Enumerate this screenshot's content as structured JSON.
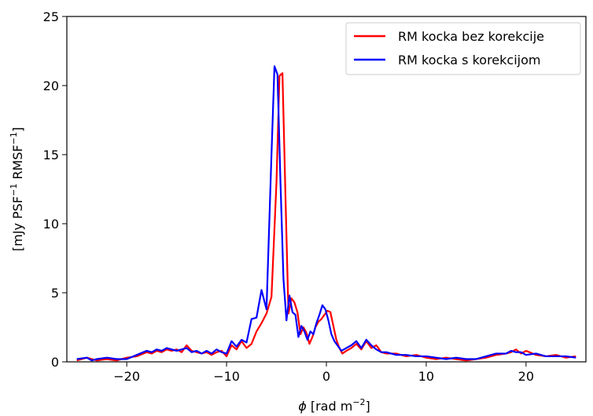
{
  "chart_data": {
    "type": "line",
    "title": "",
    "xlabel_symbol": "ϕ",
    "xlabel_text": " [rad m",
    "xlabel_sup": "−2",
    "xlabel_end": "]",
    "ylabel_parts": {
      "a": "[mJy PSF",
      "a_sup": "−1",
      "b": " RMSF",
      "b_sup": "−1",
      "c": "]"
    },
    "xlim": [
      -26,
      26
    ],
    "ylim": [
      0,
      25
    ],
    "xticks": [
      -20,
      -10,
      0,
      10,
      20
    ],
    "xtick_labels": [
      "−20",
      "−10",
      "0",
      "10",
      "20"
    ],
    "yticks": [
      0,
      5,
      10,
      15,
      20,
      25
    ],
    "ytick_labels": [
      "0",
      "5",
      "10",
      "15",
      "20",
      "25"
    ],
    "grid": false,
    "legend_position": "top-right",
    "series": [
      {
        "name": "RM kocka bez korekcije",
        "color": "#ff0000",
        "x": [
          -25.0,
          -24.0,
          -23.5,
          -23.0,
          -22.0,
          -21.0,
          -20.0,
          -19.0,
          -18.0,
          -17.5,
          -17.0,
          -16.5,
          -16.0,
          -15.5,
          -15.0,
          -14.5,
          -14.0,
          -13.5,
          -13.0,
          -12.5,
          -12.0,
          -11.5,
          -11.0,
          -10.5,
          -10.0,
          -9.5,
          -9.0,
          -8.5,
          -8.0,
          -7.5,
          -7.0,
          -6.5,
          -6.0,
          -5.5,
          -5.0,
          -4.7,
          -4.4,
          -4.1,
          -3.8,
          -3.5,
          -3.2,
          -2.9,
          -2.6,
          -2.3,
          -2.0,
          -1.7,
          -1.4,
          -1.1,
          -0.8,
          -0.5,
          -0.2,
          0.1,
          0.4,
          0.7,
          1.0,
          1.3,
          1.6,
          2.0,
          2.5,
          3.0,
          3.5,
          4.0,
          4.5,
          5.0,
          5.5,
          6.0,
          7.0,
          8.0,
          9.0,
          10.0,
          11.0,
          12.0,
          13.0,
          14.0,
          15.0,
          16.0,
          17.0,
          18.0,
          18.5,
          19.0,
          19.5,
          20.0,
          21.0,
          22.0,
          23.0,
          24.0,
          25.0
        ],
        "y": [
          0.1,
          0.3,
          0.2,
          0.1,
          0.2,
          0.1,
          0.3,
          0.4,
          0.7,
          0.6,
          0.8,
          0.7,
          0.9,
          0.8,
          0.9,
          0.7,
          1.2,
          0.8,
          0.7,
          0.6,
          0.7,
          0.5,
          0.7,
          0.8,
          0.4,
          1.2,
          0.9,
          1.5,
          1.0,
          1.3,
          2.2,
          2.8,
          3.5,
          4.7,
          13.0,
          20.7,
          20.9,
          12.0,
          3.5,
          4.6,
          4.3,
          3.6,
          2.0,
          2.5,
          2.1,
          1.3,
          1.8,
          2.5,
          2.9,
          3.1,
          3.4,
          3.7,
          3.6,
          2.6,
          1.6,
          1.0,
          0.6,
          0.8,
          1.0,
          1.3,
          0.9,
          1.5,
          1.0,
          1.2,
          0.7,
          0.6,
          0.6,
          0.4,
          0.5,
          0.3,
          0.2,
          0.3,
          0.2,
          0.1,
          0.2,
          0.3,
          0.5,
          0.6,
          0.7,
          0.9,
          0.6,
          0.8,
          0.5,
          0.4,
          0.5,
          0.3,
          0.4
        ]
      },
      {
        "name": "RM kocka s korekcijom",
        "color": "#0000ff",
        "x": [
          -25.0,
          -24.0,
          -23.5,
          -23.0,
          -22.0,
          -21.0,
          -20.0,
          -19.0,
          -18.0,
          -17.5,
          -17.0,
          -16.5,
          -16.0,
          -15.5,
          -15.0,
          -14.5,
          -14.0,
          -13.5,
          -13.0,
          -12.5,
          -12.0,
          -11.5,
          -11.0,
          -10.5,
          -10.0,
          -9.5,
          -9.0,
          -8.5,
          -8.0,
          -7.5,
          -7.0,
          -6.5,
          -6.0,
          -5.5,
          -5.2,
          -4.9,
          -4.6,
          -4.3,
          -4.0,
          -3.7,
          -3.4,
          -3.1,
          -2.8,
          -2.5,
          -2.2,
          -1.9,
          -1.6,
          -1.3,
          -1.0,
          -0.7,
          -0.4,
          -0.1,
          0.2,
          0.5,
          0.8,
          1.1,
          1.5,
          2.0,
          2.5,
          3.0,
          3.5,
          4.0,
          4.5,
          5.0,
          5.5,
          6.0,
          7.0,
          8.0,
          9.0,
          10.0,
          11.0,
          12.0,
          13.0,
          14.0,
          15.0,
          16.0,
          17.0,
          18.0,
          18.5,
          19.0,
          19.5,
          20.0,
          21.0,
          22.0,
          23.0,
          24.0,
          25.0
        ],
        "y": [
          0.2,
          0.3,
          0.1,
          0.2,
          0.3,
          0.2,
          0.2,
          0.5,
          0.8,
          0.7,
          0.9,
          0.8,
          1.0,
          0.9,
          0.8,
          0.9,
          1.0,
          0.7,
          0.8,
          0.6,
          0.8,
          0.6,
          0.9,
          0.7,
          0.6,
          1.5,
          1.1,
          1.6,
          1.4,
          3.1,
          3.2,
          5.2,
          3.8,
          15.0,
          21.4,
          20.8,
          13.0,
          6.0,
          3.0,
          4.8,
          3.6,
          3.4,
          1.8,
          2.6,
          2.2,
          1.6,
          2.2,
          2.0,
          2.8,
          3.4,
          4.1,
          3.8,
          3.0,
          2.0,
          1.5,
          1.2,
          0.8,
          1.0,
          1.2,
          1.5,
          1.0,
          1.6,
          1.2,
          0.9,
          0.7,
          0.7,
          0.5,
          0.5,
          0.4,
          0.4,
          0.3,
          0.2,
          0.3,
          0.2,
          0.2,
          0.4,
          0.6,
          0.6,
          0.8,
          0.7,
          0.7,
          0.5,
          0.6,
          0.4,
          0.4,
          0.4,
          0.3
        ]
      }
    ]
  }
}
